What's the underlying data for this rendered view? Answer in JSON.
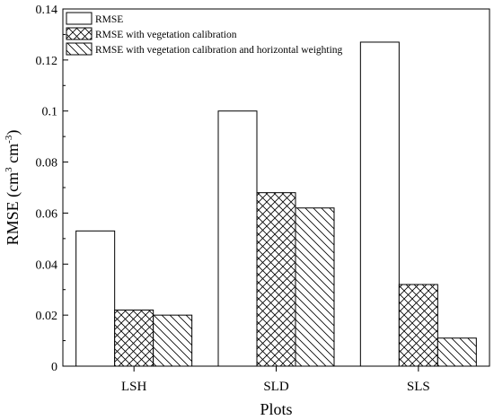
{
  "chart_data": {
    "type": "bar",
    "title": "",
    "xlabel": "Plots",
    "ylabel": "RMSE (cm3 cm-3)",
    "ylabel_parts": {
      "base": "RMSE (cm",
      "sup1": "3",
      "mid": " cm",
      "sup2": "-3",
      "end": ")"
    },
    "categories": [
      "LSH",
      "SLD",
      "SLS"
    ],
    "ylim": [
      0,
      0.14
    ],
    "yticks": [
      0,
      0.02,
      0.04,
      0.06,
      0.08,
      0.1,
      0.12,
      0.14
    ],
    "ytick_labels": [
      "0",
      "0.02",
      "0.04",
      "0.06",
      "0.08",
      "0.1",
      "0.12",
      "0.14"
    ],
    "grid": false,
    "legend_position": "top-left",
    "series": [
      {
        "name": "RMSE",
        "pattern": "none",
        "values": [
          0.053,
          0.1,
          0.127
        ]
      },
      {
        "name": "RMSE with vegetation calibration",
        "pattern": "crosshatch",
        "values": [
          0.022,
          0.068,
          0.032
        ]
      },
      {
        "name": "RMSE with vegetation calibration and horizontal weighting",
        "pattern": "backslash",
        "values": [
          0.02,
          0.062,
          0.011
        ]
      }
    ]
  }
}
